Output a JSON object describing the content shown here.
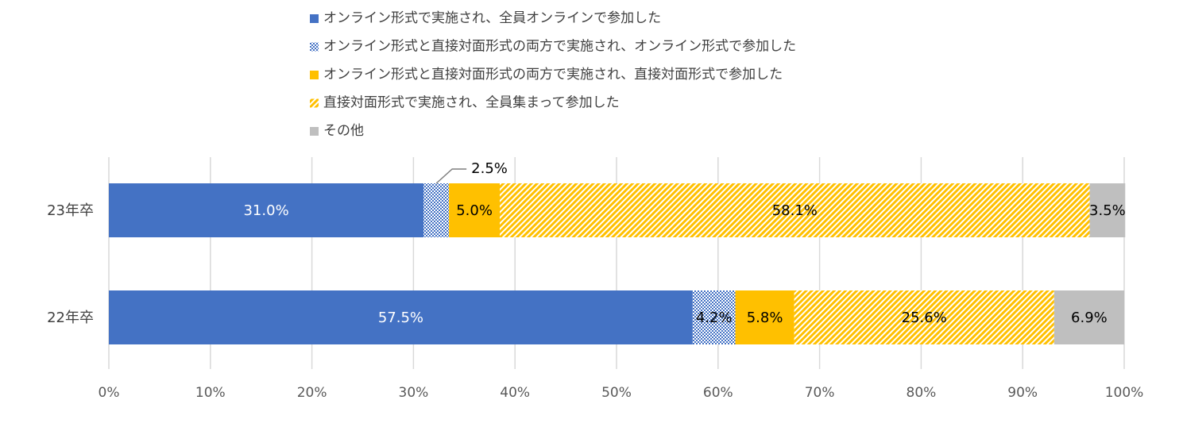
{
  "chart_data": {
    "type": "bar",
    "orientation": "horizontal",
    "stacked": "percent",
    "categories": [
      "23年卒",
      "22年卒"
    ],
    "series": [
      {
        "name": "オンライン形式で実施され、全員オンラインで参加した",
        "values": [
          31.0,
          57.5
        ],
        "labels": [
          "31.0%",
          "57.5%"
        ],
        "color": "#4472C4",
        "pattern": "solid",
        "label_color": "#ffffff"
      },
      {
        "name": "オンライン形式と直接対面形式の両方で実施され、オンライン形式で参加した",
        "values": [
          2.5,
          4.2
        ],
        "labels": [
          "2.5%",
          "4.2%"
        ],
        "color": "#4472C4",
        "pattern": "dots",
        "label_color": "#000000"
      },
      {
        "name": "オンライン形式と直接対面形式の両方で実施され、直接対面形式で参加した",
        "values": [
          5.0,
          5.8
        ],
        "labels": [
          "5.0%",
          "5.8%"
        ],
        "color": "#FFC000",
        "pattern": "solid",
        "label_color": "#000000"
      },
      {
        "name": "直接対面形式で実施され、全員集まって参加した",
        "values": [
          58.1,
          25.6
        ],
        "labels": [
          "58.1%",
          "25.6%"
        ],
        "color": "#FFC000",
        "pattern": "stripes",
        "label_color": "#000000"
      },
      {
        "name": "その他",
        "values": [
          3.5,
          6.9
        ],
        "labels": [
          "3.5%",
          "6.9%"
        ],
        "color": "#BFBFBF",
        "pattern": "solid",
        "label_color": "#000000"
      }
    ],
    "xaxis": {
      "ticks": [
        "0%",
        "10%",
        "20%",
        "30%",
        "40%",
        "50%",
        "60%",
        "70%",
        "80%",
        "90%",
        "100%"
      ],
      "range": [
        0,
        100
      ]
    },
    "grid": true,
    "legend_position": "top",
    "callout": {
      "category_index": 0,
      "series_index": 1,
      "text": "2.5%"
    }
  }
}
